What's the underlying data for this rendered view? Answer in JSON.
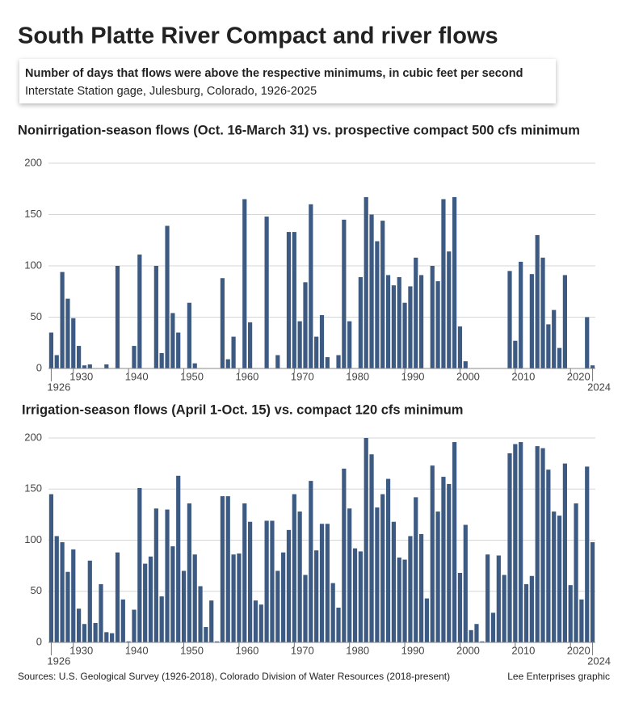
{
  "title": "South Platte River Compact and river flows",
  "subtitle": "Number of days that flows were above the respective minimums, in cubic feet per second",
  "subtitle2": "Interstate Station gage, Julesburg, Colorado, 1926-2025",
  "source": "Sources: U.S. Geological Survey (1926-2018), Colorado Division of Water Resources (2018-present)",
  "credit": "Lee Enterprises graphic",
  "chart_data": [
    {
      "type": "bar",
      "title": "Nonirrigation-season flows (Oct. 16-March 31) vs. prospective compact 500 cfs minimum",
      "x": [
        1926,
        1927,
        1928,
        1929,
        1930,
        1931,
        1932,
        1933,
        1934,
        1935,
        1936,
        1937,
        1938,
        1939,
        1940,
        1941,
        1942,
        1943,
        1944,
        1945,
        1946,
        1947,
        1948,
        1949,
        1950,
        1951,
        1952,
        1953,
        1954,
        1955,
        1956,
        1957,
        1958,
        1959,
        1960,
        1961,
        1962,
        1963,
        1964,
        1965,
        1966,
        1967,
        1968,
        1969,
        1970,
        1971,
        1972,
        1973,
        1974,
        1975,
        1976,
        1977,
        1978,
        1979,
        1980,
        1981,
        1982,
        1983,
        1984,
        1985,
        1986,
        1987,
        1988,
        1989,
        1990,
        1991,
        1992,
        1993,
        1994,
        1995,
        1996,
        1997,
        1998,
        1999,
        2000,
        2001,
        2002,
        2003,
        2004,
        2005,
        2006,
        2007,
        2008,
        2009,
        2010,
        2011,
        2012,
        2013,
        2014,
        2015,
        2016,
        2017,
        2018,
        2019,
        2020,
        2021,
        2022,
        2023,
        2024
      ],
      "values": [
        35,
        13,
        94,
        68,
        49,
        22,
        3,
        4,
        0,
        0,
        4,
        0,
        100,
        0,
        0,
        22,
        111,
        0,
        0,
        100,
        15,
        139,
        54,
        35,
        0,
        64,
        5,
        0,
        0,
        0,
        0,
        88,
        9,
        31,
        0,
        165,
        45,
        0,
        0,
        148,
        0,
        13,
        0,
        133,
        133,
        46,
        84,
        160,
        31,
        52,
        11,
        0,
        13,
        145,
        46,
        0,
        89,
        167,
        150,
        124,
        144,
        91,
        81,
        89,
        64,
        80,
        108,
        91,
        0,
        100,
        85,
        165,
        114,
        167,
        41,
        7,
        0,
        0,
        0,
        0,
        0,
        0,
        0,
        95,
        27,
        104,
        0,
        92,
        130,
        108,
        43,
        57,
        20,
        91,
        0,
        0,
        0,
        50,
        3
      ],
      "color": "#3c5a82",
      "xlim": [
        1925.5,
        2024.5
      ],
      "xticks": [
        1926,
        1930,
        1940,
        1950,
        1960,
        1970,
        1980,
        1990,
        2000,
        2010,
        2020,
        2024
      ],
      "ylim": [
        0,
        200
      ],
      "yticks": [
        0,
        50,
        100,
        150,
        200
      ],
      "grid": true
    },
    {
      "type": "bar",
      "title": "Irrigation-season flows (April 1-Oct. 15) vs. compact 120 cfs minimum",
      "x": [
        1926,
        1927,
        1928,
        1929,
        1930,
        1931,
        1932,
        1933,
        1934,
        1935,
        1936,
        1937,
        1938,
        1939,
        1940,
        1941,
        1942,
        1943,
        1944,
        1945,
        1946,
        1947,
        1948,
        1949,
        1950,
        1951,
        1952,
        1953,
        1954,
        1955,
        1956,
        1957,
        1958,
        1959,
        1960,
        1961,
        1962,
        1963,
        1964,
        1965,
        1966,
        1967,
        1968,
        1969,
        1970,
        1971,
        1972,
        1973,
        1974,
        1975,
        1976,
        1977,
        1978,
        1979,
        1980,
        1981,
        1982,
        1983,
        1984,
        1985,
        1986,
        1987,
        1988,
        1989,
        1990,
        1991,
        1992,
        1993,
        1994,
        1995,
        1996,
        1997,
        1998,
        1999,
        2000,
        2001,
        2002,
        2003,
        2004,
        2005,
        2006,
        2007,
        2008,
        2009,
        2010,
        2011,
        2012,
        2013,
        2014,
        2015,
        2016,
        2017,
        2018,
        2019,
        2020,
        2021,
        2022,
        2023,
        2024
      ],
      "values": [
        145,
        104,
        98,
        69,
        91,
        33,
        18,
        80,
        19,
        57,
        10,
        9,
        88,
        42,
        1,
        32,
        151,
        77,
        84,
        131,
        45,
        130,
        94,
        163,
        70,
        136,
        86,
        55,
        15,
        41,
        1,
        143,
        143,
        86,
        87,
        136,
        118,
        41,
        37,
        119,
        119,
        70,
        88,
        110,
        145,
        128,
        66,
        158,
        90,
        116,
        116,
        58,
        34,
        170,
        131,
        92,
        89,
        200,
        184,
        132,
        145,
        160,
        118,
        83,
        81,
        104,
        142,
        106,
        43,
        173,
        128,
        162,
        155,
        196,
        68,
        115,
        12,
        18,
        1,
        86,
        29,
        85,
        66,
        185,
        194,
        196,
        57,
        65,
        192,
        190,
        169,
        128,
        124,
        175,
        56,
        136,
        42,
        172,
        98
      ],
      "color": "#3c5a82",
      "xlim": [
        1925.5,
        2024.5
      ],
      "xticks": [
        1926,
        1930,
        1940,
        1950,
        1960,
        1970,
        1980,
        1990,
        2000,
        2010,
        2020,
        2024
      ],
      "ylim": [
        0,
        200
      ],
      "yticks": [
        0,
        50,
        100,
        150,
        200
      ],
      "grid": true
    }
  ]
}
